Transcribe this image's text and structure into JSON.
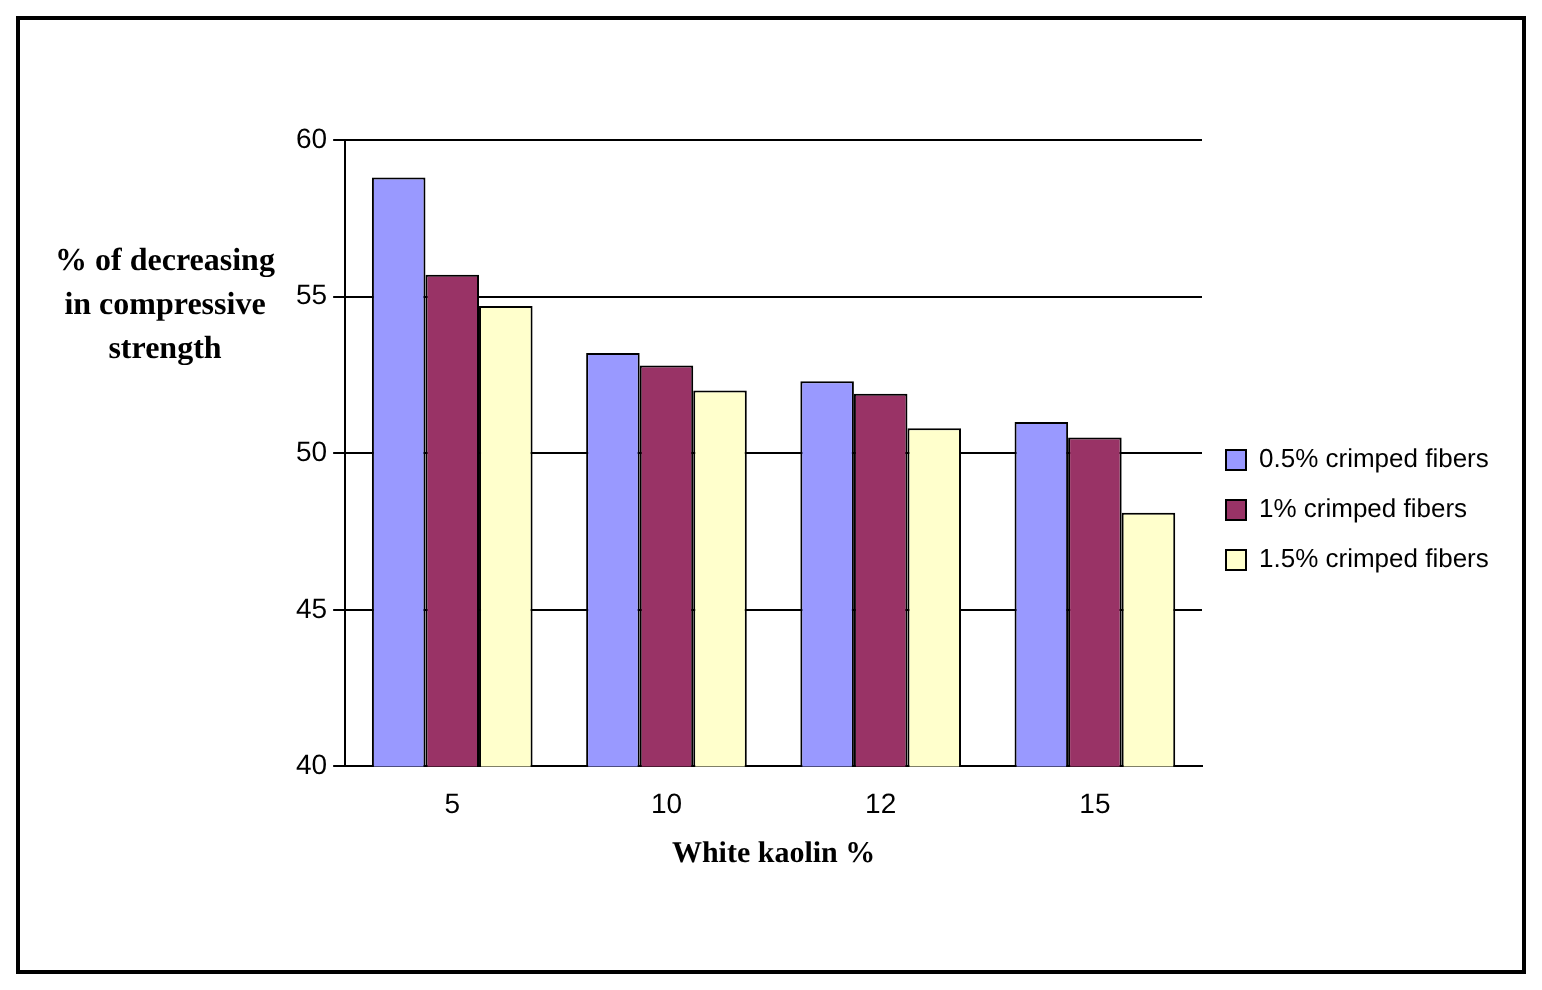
{
  "chart_data": {
    "type": "bar",
    "xlabel": "White kaolin %",
    "ylabel": "% of decreasing in compressive strength",
    "categories": [
      "5",
      "10",
      "12",
      "15"
    ],
    "series": [
      {
        "name": "0.5% crimped fibers",
        "color": "#9999ff",
        "values": [
          58.8,
          53.2,
          52.3,
          51.0
        ]
      },
      {
        "name": "1% crimped fibers",
        "color": "#993366",
        "values": [
          55.7,
          52.8,
          51.9,
          50.5
        ]
      },
      {
        "name": "1.5% crimped fibers",
        "color": "#ffffcc",
        "values": [
          54.7,
          52.0,
          50.8,
          48.1
        ]
      }
    ],
    "ylim": [
      40,
      60
    ],
    "yticks": [
      40,
      45,
      50,
      55,
      60
    ],
    "grid": "y",
    "legend": "right"
  }
}
